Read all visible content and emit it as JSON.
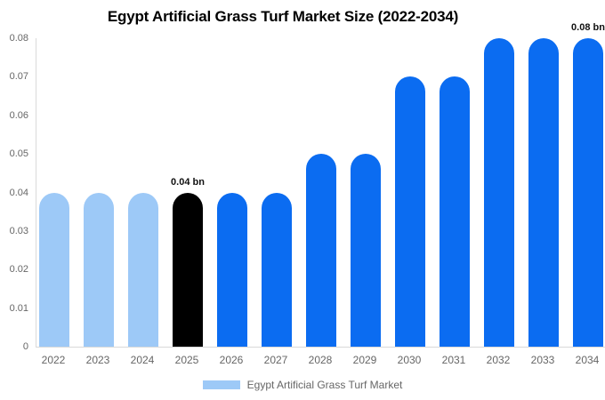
{
  "chart_data": {
    "type": "bar",
    "title": "Egypt Artificial Grass Turf Market Size (2022-2034)",
    "categories": [
      "2022",
      "2023",
      "2024",
      "2025",
      "2026",
      "2027",
      "2028",
      "2029",
      "2030",
      "2031",
      "2032",
      "2033",
      "2034"
    ],
    "values": [
      0.04,
      0.04,
      0.04,
      0.04,
      0.04,
      0.04,
      0.05,
      0.05,
      0.07,
      0.07,
      0.08,
      0.08,
      0.08
    ],
    "unit": "bn",
    "xlabel": "",
    "ylabel": "",
    "ylim": [
      0,
      0.08
    ],
    "ytick_labels_top_to_bottom": [
      "0.08",
      "0.07",
      "0.06",
      "0.05",
      "0.04",
      "0.03",
      "0.02",
      "0.01",
      "0"
    ],
    "grid": false,
    "bar_colors": [
      "light_blue",
      "light_blue",
      "light_blue",
      "black",
      "blue",
      "blue",
      "blue",
      "blue",
      "blue",
      "blue",
      "blue",
      "blue",
      "blue"
    ],
    "colors": {
      "light_blue": "#9dc9f7",
      "blue": "#0b6cf1",
      "black": "#000000",
      "axis_line": "#d9d9d9",
      "tick_text": "#666666",
      "annotation_text": "#111111"
    },
    "annotations": [
      {
        "category": "2025",
        "text": "0.04 bn"
      },
      {
        "category": "2034",
        "text": "0.08 bn"
      }
    ],
    "legend": {
      "position": "bottom",
      "label": "Egypt Artificial Grass Turf Market",
      "swatch_color": "#9dc9f7"
    }
  }
}
